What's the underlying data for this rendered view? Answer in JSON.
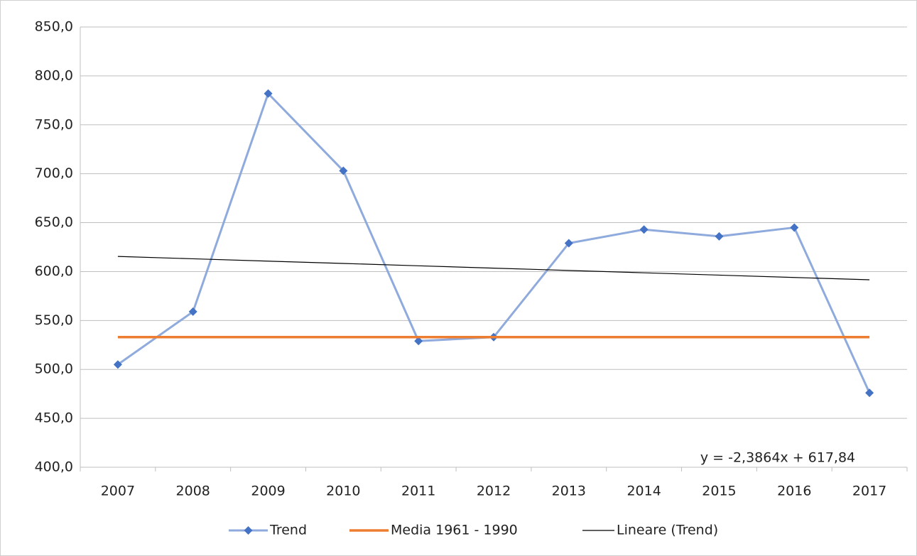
{
  "chart_data": {
    "type": "line",
    "annotation": "y = -2,3864x + 617,84",
    "categories": [
      "2007",
      "2008",
      "2009",
      "2010",
      "2011",
      "2012",
      "2013",
      "2014",
      "2015",
      "2016",
      "2017"
    ],
    "series": [
      {
        "name": "Trend",
        "color": "#8faadc",
        "marker_color": "#4472c4",
        "values": [
          505,
          559,
          782,
          703,
          529,
          533,
          629,
          643,
          636,
          645,
          476
        ]
      },
      {
        "name": "Media 1961 - 1990",
        "color": "#ed7d31",
        "values": [
          533,
          533,
          533,
          533,
          533,
          533,
          533,
          533,
          533,
          533,
          533
        ]
      },
      {
        "name": "Lineare (Trend)",
        "color": "#000000",
        "values": [
          615.45,
          613.07,
          610.68,
          608.29,
          605.91,
          603.52,
          601.14,
          598.75,
          596.36,
          593.98,
          591.59
        ]
      }
    ],
    "ylim": [
      400,
      850
    ],
    "yticks": [
      {
        "value": 400,
        "label": "400,0"
      },
      {
        "value": 450,
        "label": "450,0"
      },
      {
        "value": 500,
        "label": "500,0"
      },
      {
        "value": 550,
        "label": "550,0"
      },
      {
        "value": 600,
        "label": "600,0"
      },
      {
        "value": 650,
        "label": "650,0"
      },
      {
        "value": 700,
        "label": "700,0"
      },
      {
        "value": 750,
        "label": "750,0"
      },
      {
        "value": 800,
        "label": "800,0"
      },
      {
        "value": 850,
        "label": "850,0"
      }
    ],
    "grid": true
  }
}
